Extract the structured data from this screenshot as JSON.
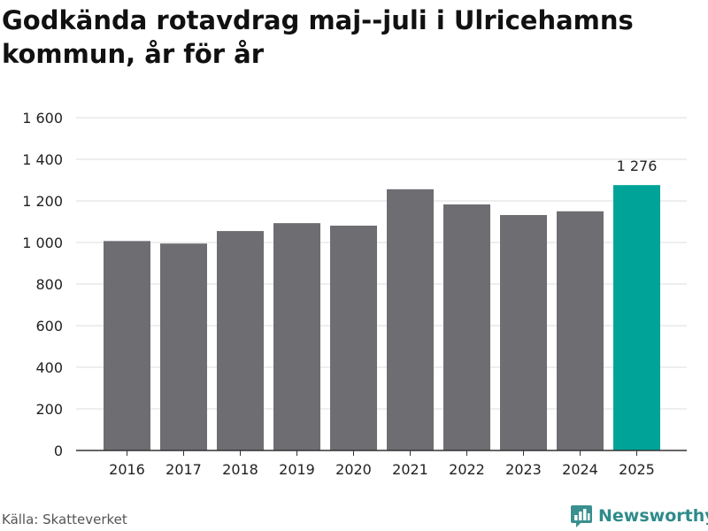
{
  "title": "Godkända rotavdrag maj--juli i Ulricehamns kommun, år för år",
  "source": "Källa: Skatteverket",
  "brand": {
    "name": "Newsworthy",
    "icon": "bar-chart-logo-icon",
    "color": "#3a8f8f"
  },
  "colors": {
    "bar": "#6e6d72",
    "highlight": "#00a398",
    "grid": "#dedede",
    "axis": "#333333"
  },
  "chart_data": {
    "type": "bar",
    "title": "Godkända rotavdrag maj--juli i Ulricehamns kommun, år för år",
    "xlabel": "",
    "ylabel": "",
    "categories": [
      "2016",
      "2017",
      "2018",
      "2019",
      "2020",
      "2021",
      "2022",
      "2023",
      "2024",
      "2025"
    ],
    "values": [
      1007,
      995,
      1055,
      1093,
      1081,
      1256,
      1183,
      1132,
      1150,
      1276
    ],
    "highlight_index": 9,
    "data_labels": [
      {
        "index": 9,
        "text": "1 276"
      }
    ],
    "ylim": [
      0,
      1600
    ],
    "yticks": [
      0,
      200,
      400,
      600,
      800,
      1000,
      1200,
      1400,
      1600
    ],
    "ytick_labels": [
      "0",
      "200",
      "400",
      "600",
      "800",
      "1 000",
      "1 200",
      "1 400",
      "1 600"
    ],
    "grid": true,
    "legend": "none"
  }
}
